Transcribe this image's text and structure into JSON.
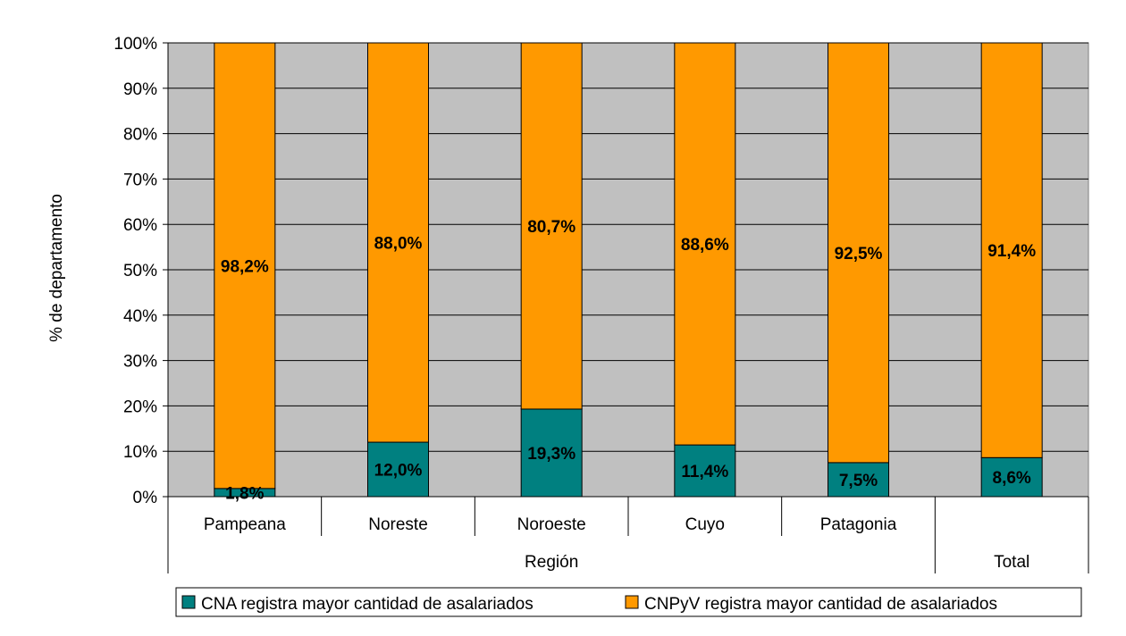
{
  "chart_data": {
    "type": "bar",
    "stacked": true,
    "percent_stacked": true,
    "categories": [
      "Pampeana",
      "Noreste",
      "Noroeste",
      "Cuyo",
      "Patagonia",
      ""
    ],
    "group_labels": [
      "Región",
      "Total"
    ],
    "series": [
      {
        "name": "CNA registra mayor cantidad de asalariados",
        "color": "#008080",
        "values": [
          1.8,
          12.0,
          19.3,
          11.4,
          7.5,
          8.6
        ],
        "labels": [
          "1,8%",
          "12,0%",
          "19,3%",
          "11,4%",
          "7,5%",
          "8,6%"
        ]
      },
      {
        "name": "CNPyV registra mayor cantidad de asalariados",
        "color": "#FF9900",
        "values": [
          98.2,
          88.0,
          80.7,
          88.6,
          92.5,
          91.4
        ],
        "labels": [
          "98,2%",
          "88,0%",
          "80,7%",
          "88,6%",
          "92,5%",
          "91,4%"
        ]
      }
    ],
    "ylabel": "% de departamento",
    "ylim": [
      0,
      100
    ],
    "y_ticks": [
      "0%",
      "10%",
      "20%",
      "30%",
      "40%",
      "50%",
      "60%",
      "70%",
      "80%",
      "90%",
      "100%"
    ],
    "plot_background": "#C0C0C0",
    "grid": true,
    "legend_position": "bottom"
  }
}
